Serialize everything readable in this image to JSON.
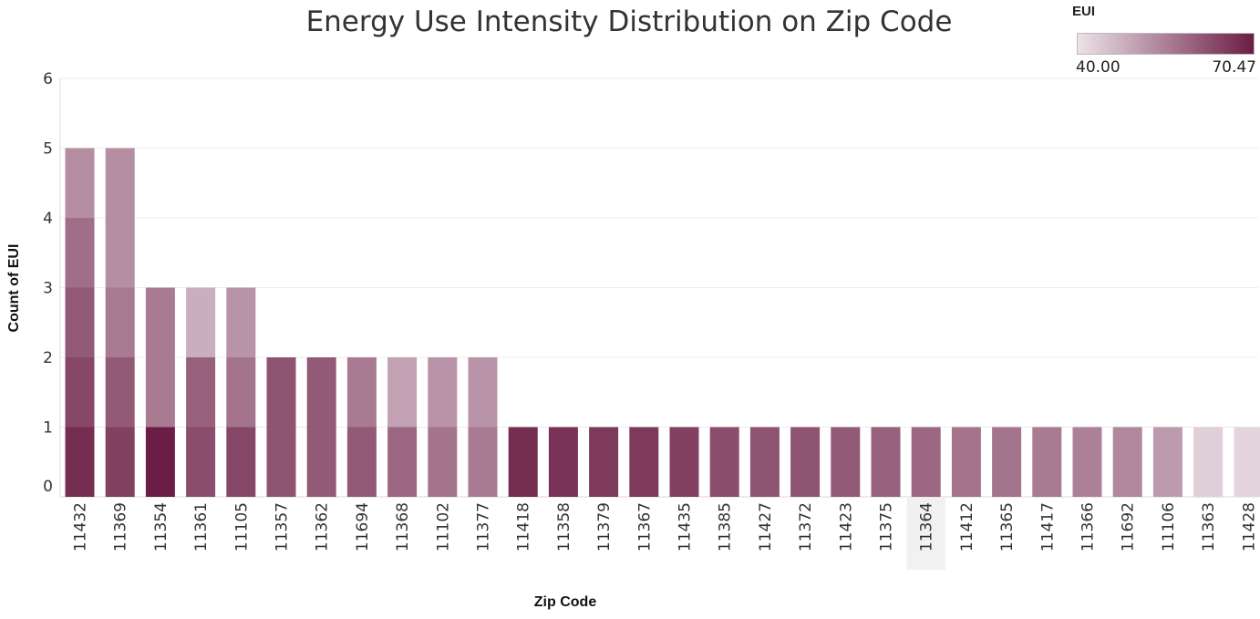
{
  "chart_data": {
    "type": "bar",
    "stacked": true,
    "title": "Energy Use Intensity Distribution on Zip Code",
    "xlabel": "Zip Code",
    "ylabel": "Count of EUI",
    "ylim": [
      0,
      6
    ],
    "yticks": [
      "0",
      "1",
      "2",
      "3",
      "4",
      "5",
      "6"
    ],
    "grid": true,
    "highlighted_category": "11364",
    "categories": [
      "11432",
      "11369",
      "11354",
      "11361",
      "11105",
      "11357",
      "11362",
      "11694",
      "11368",
      "11102",
      "11377",
      "11418",
      "11358",
      "11379",
      "11367",
      "11435",
      "11385",
      "11427",
      "11372",
      "11423",
      "11375",
      "11364",
      "11412",
      "11365",
      "11417",
      "11366",
      "11692",
      "11106",
      "11363",
      "11428"
    ],
    "values": [
      5,
      5,
      3,
      3,
      3,
      2,
      2,
      2,
      2,
      2,
      2,
      1,
      1,
      1,
      1,
      1,
      1,
      1,
      1,
      1,
      1,
      1,
      1,
      1,
      1,
      1,
      1,
      1,
      1,
      1
    ],
    "segment_eui": [
      [
        68,
        64,
        61,
        58,
        53
      ],
      [
        65,
        61,
        56,
        53,
        53
      ],
      [
        70.47,
        56,
        56
      ],
      [
        63,
        60,
        48
      ],
      [
        64,
        57,
        52
      ],
      [
        62,
        62
      ],
      [
        61,
        61
      ],
      [
        61,
        56
      ],
      [
        59,
        50
      ],
      [
        57,
        52
      ],
      [
        56,
        52
      ],
      [
        68
      ],
      [
        67
      ],
      [
        66
      ],
      [
        66
      ],
      [
        65
      ],
      [
        63
      ],
      [
        62
      ],
      [
        62
      ],
      [
        61
      ],
      [
        60
      ],
      [
        59
      ],
      [
        57
      ],
      [
        57
      ],
      [
        56
      ],
      [
        55
      ],
      [
        54
      ],
      [
        51
      ],
      [
        43
      ],
      [
        42
      ]
    ],
    "legend": {
      "title": "EUI",
      "min": 40.0,
      "max": 70.47,
      "min_label": "40.00",
      "max_label": "70.47",
      "color_low": "#ece2e8",
      "color_high": "#6b1d45"
    }
  }
}
